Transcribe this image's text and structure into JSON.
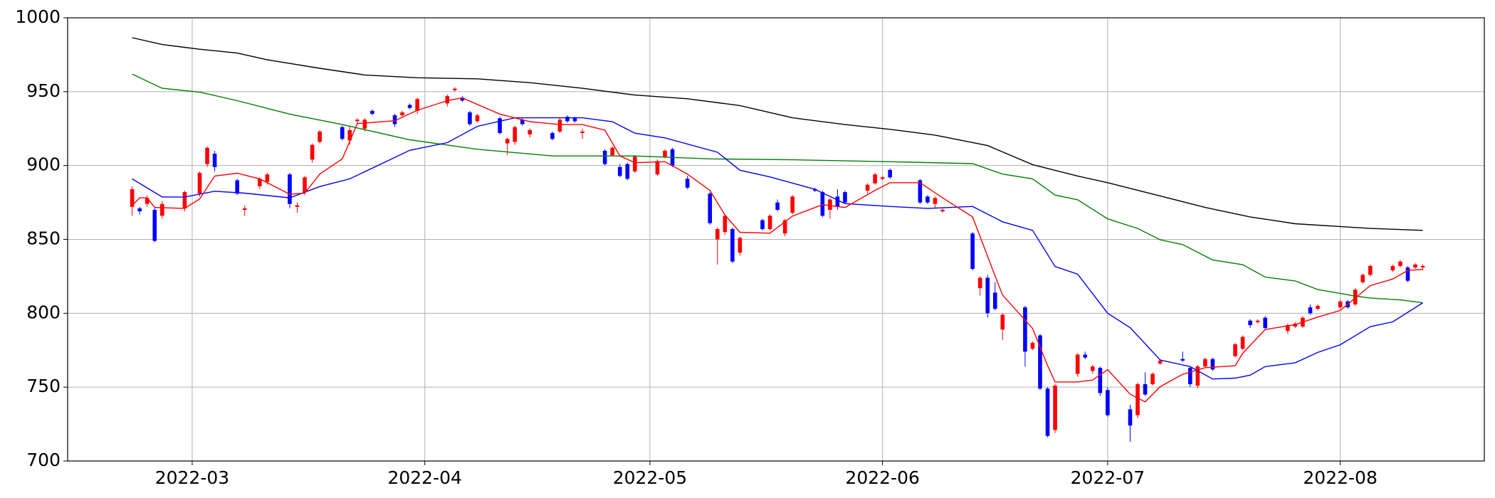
{
  "chart_data": {
    "type": "candlestick",
    "up_color": "#ff0000",
    "down_color": "#0000ff",
    "x": [
      19044,
      19045,
      19046,
      19047,
      19048,
      19051,
      19053,
      19054,
      19055,
      19058,
      19059,
      19061,
      19062,
      19065,
      19066,
      19067,
      19068,
      19069,
      19072,
      19073,
      19074,
      19075,
      19076,
      19079,
      19080,
      19081,
      19082,
      19086,
      19087,
      19088,
      19089,
      19090,
      19093,
      19094,
      19095,
      19096,
      19097,
      19100,
      19101,
      19102,
      19103,
      19104,
      19107,
      19108,
      19109,
      19110,
      19111,
      19114,
      19115,
      19116,
      19118,
      19121,
      19122,
      19123,
      19124,
      19125,
      19128,
      19129,
      19130,
      19131,
      19132,
      19135,
      19136,
      19137,
      19138,
      19139,
      19142,
      19143,
      19144,
      19145,
      19149,
      19150,
      19151,
      19152,
      19156,
      19157,
      19158,
      19159,
      19160,
      19163,
      19164,
      19165,
      19166,
      19167,
      19170,
      19171,
      19172,
      19173,
      19174,
      19177,
      19178,
      19179,
      19180,
      19181,
      19184,
      19185,
      19186,
      19187,
      19188,
      19191,
      19192,
      19193,
      19194,
      19195,
      19198,
      19199,
      19200,
      19201,
      19202,
      19205,
      19206,
      19207,
      19208,
      19209,
      19212,
      19213,
      19214,
      19215,
      19216
    ],
    "open": [
      872,
      871,
      874,
      870,
      866,
      871,
      881,
      901,
      908,
      890,
      870,
      886,
      889,
      894,
      872,
      882,
      904,
      916,
      926,
      917,
      930,
      925,
      937,
      934,
      934,
      941,
      937,
      942,
      951,
      946,
      936,
      930,
      932,
      915,
      916,
      931,
      921,
      922,
      923,
      933,
      932,
      922,
      910,
      907,
      899,
      901,
      896,
      894,
      906,
      911,
      891,
      881,
      850,
      855,
      857,
      841,
      863,
      857,
      875,
      854,
      868,
      884,
      882,
      870,
      879,
      882,
      883,
      888,
      891,
      897,
      890,
      879,
      874,
      869,
      854,
      817,
      824,
      814,
      789,
      804,
      776,
      785,
      749,
      721,
      759,
      772,
      761,
      763,
      748,
      735,
      731,
      752,
      752,
      766,
      769,
      763,
      751,
      764,
      769,
      771,
      776,
      795,
      794,
      797,
      788,
      791,
      791,
      804,
      803,
      804,
      808,
      806,
      821,
      826,
      829,
      832,
      831,
      831,
      831
    ],
    "high": [
      886,
      872,
      880,
      872,
      876,
      883,
      896,
      913,
      910,
      891,
      873,
      892,
      895,
      895,
      875,
      893,
      915,
      924,
      927,
      927,
      932,
      932,
      938,
      935,
      937,
      942,
      946,
      948,
      953,
      947,
      937,
      935,
      933,
      919,
      927,
      932,
      925,
      923,
      932,
      934,
      933,
      925,
      911,
      913,
      901,
      902,
      907,
      904,
      911,
      912,
      893,
      882,
      858,
      867,
      858,
      852,
      864,
      867,
      877,
      864,
      880,
      885,
      883,
      878,
      884,
      883,
      888,
      895,
      893,
      898,
      891,
      880,
      879,
      871,
      855,
      825,
      826,
      821,
      800,
      805,
      781,
      786,
      750,
      752,
      773,
      774,
      765,
      764,
      750,
      738,
      753,
      760,
      760,
      769,
      774,
      764,
      765,
      770,
      770,
      780,
      785,
      796,
      796,
      798,
      793,
      794,
      798,
      806,
      806,
      809,
      809,
      817,
      827,
      833,
      833,
      836,
      832,
      834,
      833
    ],
    "low": [
      866,
      867,
      872,
      848,
      864,
      869,
      879,
      899,
      896,
      880,
      866,
      884,
      887,
      871,
      868,
      880,
      902,
      915,
      917,
      914,
      928,
      923,
      934,
      926,
      933,
      938,
      935,
      940,
      950,
      943,
      927,
      929,
      921,
      907,
      914,
      927,
      919,
      917,
      922,
      929,
      929,
      918,
      900,
      906,
      892,
      890,
      895,
      893,
      905,
      899,
      884,
      860,
      833,
      853,
      834,
      839,
      856,
      856,
      869,
      852,
      867,
      882,
      865,
      864,
      870,
      874,
      881,
      887,
      890,
      891,
      874,
      874,
      871,
      868,
      829,
      812,
      797,
      802,
      782,
      764,
      775,
      748,
      716,
      719,
      757,
      769,
      759,
      744,
      730,
      713,
      729,
      744,
      751,
      765,
      767,
      750,
      749,
      763,
      761,
      770,
      775,
      790,
      793,
      789,
      786,
      790,
      790,
      799,
      802,
      803,
      803,
      805,
      820,
      825,
      828,
      831,
      821,
      830,
      829
    ],
    "close": [
      884,
      869,
      878,
      849,
      874,
      882,
      895,
      912,
      899,
      881,
      871,
      891,
      894,
      874,
      873,
      892,
      914,
      923,
      918,
      924,
      931,
      931,
      935,
      928,
      936,
      939,
      945,
      947,
      952,
      944,
      928,
      934,
      922,
      918,
      926,
      928,
      924,
      918,
      931,
      930,
      930,
      923,
      901,
      912,
      893,
      891,
      906,
      903,
      910,
      900,
      885,
      861,
      857,
      866,
      835,
      851,
      857,
      866,
      870,
      863,
      879,
      883,
      866,
      877,
      872,
      875,
      887,
      894,
      892,
      892,
      875,
      875,
      878,
      870,
      830,
      824,
      800,
      803,
      799,
      774,
      780,
      749,
      717,
      751,
      772,
      770,
      764,
      746,
      731,
      724,
      752,
      745,
      759,
      768,
      768,
      752,
      764,
      769,
      762,
      779,
      784,
      792,
      795,
      790,
      792,
      793,
      797,
      800,
      805,
      808,
      804,
      816,
      826,
      832,
      832,
      835,
      822,
      833,
      832
    ],
    "lines": [
      {
        "color": "#000000",
        "x": [
          19044,
          19048,
          19053,
          19058,
          19062,
          19069,
          19075,
          19082,
          19090,
          19097,
          19104,
          19111,
          19118,
          19125,
          19132,
          19139,
          19145,
          19151,
          19158,
          19164,
          19170,
          19174,
          19181,
          19187,
          19193,
          19199,
          19205,
          19209,
          19216
        ],
        "values": [
          986.5,
          981.9,
          978.7,
          976.1,
          971.6,
          965.8,
          961.3,
          959.4,
          958.7,
          956.1,
          952.3,
          947.7,
          945.2,
          940.6,
          932.3,
          927.7,
          924.5,
          920.6,
          913.5,
          900.6,
          892.9,
          888.4,
          879.4,
          871.6,
          865.2,
          860.6,
          858.7,
          857.4,
          856.1
        ]
      },
      {
        "color": "#008000",
        "x": [
          19044,
          19048,
          19053,
          19058,
          19065,
          19072,
          19081,
          19090,
          19100,
          19111,
          19121,
          19132,
          19145,
          19156,
          19160,
          19164,
          19167,
          19170,
          19174,
          19178,
          19181,
          19184,
          19188,
          19192,
          19195,
          19199,
          19202,
          19207,
          19209,
          19213,
          19216
        ],
        "values": [
          961.9,
          952.3,
          949.7,
          943.9,
          934.8,
          927.7,
          917.4,
          911,
          906.5,
          906.5,
          904.5,
          903.9,
          902.6,
          901.3,
          894.2,
          891,
          880,
          876.8,
          863.9,
          857.4,
          849.7,
          846.5,
          836.1,
          832.9,
          824.5,
          821.9,
          816.1,
          811.6,
          810.3,
          809,
          807.1
        ]
      },
      {
        "color": "#0000ff",
        "x": [
          19044,
          19048,
          19051,
          19055,
          19059,
          19065,
          19069,
          19073,
          19081,
          19086,
          19090,
          19095,
          19104,
          19108,
          19111,
          19115,
          19122,
          19125,
          19129,
          19135,
          19139,
          19145,
          19150,
          19156,
          19160,
          19164,
          19167,
          19170,
          19174,
          19177,
          19181,
          19185,
          19188,
          19191,
          19193,
          19195,
          19199,
          19202,
          19205,
          19209,
          19212,
          19216
        ],
        "values": [
          891,
          878.7,
          878.7,
          882.6,
          881.3,
          878.1,
          885.8,
          891,
          910.3,
          915.5,
          926.5,
          932.3,
          932.3,
          929.7,
          921.9,
          918.7,
          909,
          896.8,
          892.3,
          883.9,
          874.2,
          872.3,
          871,
          872.3,
          861.9,
          856.1,
          831.6,
          826.5,
          800,
          790.3,
          768.4,
          763.9,
          755.5,
          756.1,
          758.1,
          763.9,
          766.5,
          773.5,
          778.7,
          790.9,
          794.2,
          807.1
        ]
      },
      {
        "color": "#ff0000",
        "x": [
          19044,
          19045,
          19046,
          19047,
          19051,
          19053,
          19055,
          19058,
          19061,
          19065,
          19067,
          19069,
          19072,
          19074,
          19079,
          19082,
          19086,
          19088,
          19093,
          19097,
          19101,
          19104,
          19107,
          19109,
          19111,
          19115,
          19118,
          19121,
          19123,
          19125,
          19129,
          19132,
          19136,
          19139,
          19143,
          19145,
          19149,
          19152,
          19156,
          19159,
          19160,
          19164,
          19166,
          19167,
          19170,
          19172,
          19174,
          19177,
          19179,
          19181,
          19184,
          19187,
          19191,
          19192,
          19195,
          19199,
          19202,
          19205,
          19209,
          19212,
          19214,
          19216
        ],
        "values": [
          872.9,
          878.1,
          878.1,
          871.6,
          871,
          877.4,
          892.9,
          894.8,
          891,
          880.6,
          881.3,
          894.2,
          904.5,
          928.4,
          930.3,
          937.4,
          943.9,
          945.8,
          934.8,
          929.7,
          927.7,
          927.7,
          923.9,
          906.5,
          901.9,
          902.6,
          894.2,
          883.2,
          866.5,
          854.8,
          854.2,
          865.8,
          873.5,
          871.6,
          883.2,
          888.4,
          888.4,
          878.1,
          865.2,
          825.2,
          812.3,
          789.7,
          764.5,
          753.5,
          753.5,
          754.8,
          761.9,
          745.2,
          740,
          750.3,
          758.7,
          763.2,
          764.5,
          772.9,
          789,
          792.3,
          797.4,
          801.9,
          818.7,
          823.2,
          829,
          829.7
        ]
      }
    ],
    "xlim": [
      19035.4,
      19224.2
    ],
    "xticks": [
      {
        "value": 19052,
        "label": "2022-03"
      },
      {
        "value": 19083,
        "label": "2022-04"
      },
      {
        "value": 19113,
        "label": "2022-05"
      },
      {
        "value": 19144,
        "label": "2022-06"
      },
      {
        "value": 19174,
        "label": "2022-07"
      },
      {
        "value": 19205,
        "label": "2022-08"
      }
    ],
    "ylim": [
      700,
      1000
    ],
    "yticks": [
      700,
      750,
      800,
      850,
      900,
      950,
      1000
    ],
    "grid": true
  }
}
